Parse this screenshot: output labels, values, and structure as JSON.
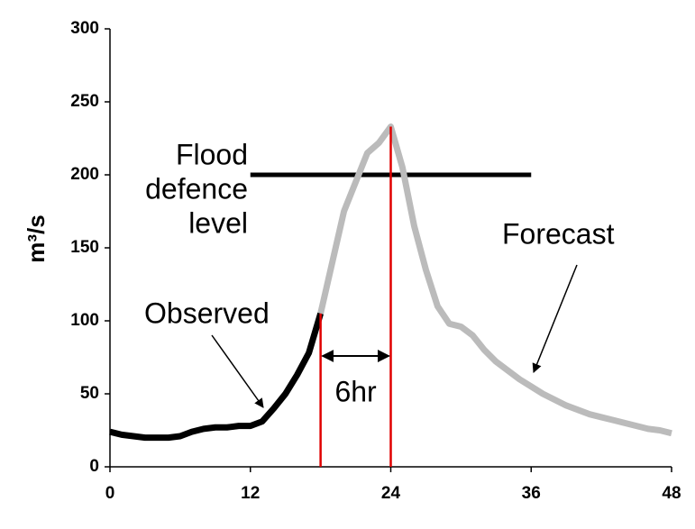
{
  "chart_data": {
    "type": "line",
    "y_label": "m³/s",
    "xlim": [
      0,
      48
    ],
    "xticks": [
      0,
      12,
      24,
      36,
      48
    ],
    "ylim": [
      0,
      300
    ],
    "yticks": [
      0,
      50,
      100,
      150,
      200,
      250,
      300
    ],
    "series": [
      {
        "name": "Observed",
        "color": "#000000",
        "x": [
          0,
          1,
          2,
          3,
          4,
          5,
          6,
          7,
          8,
          9,
          10,
          11,
          12,
          13,
          14,
          15,
          16,
          17,
          18
        ],
        "values": [
          24,
          22,
          21,
          20,
          20,
          20,
          21,
          24,
          26,
          27,
          27,
          28,
          28,
          31,
          40,
          50,
          63,
          78,
          105
        ]
      },
      {
        "name": "Forecast",
        "color": "#bbbbbb",
        "x": [
          18,
          19,
          20,
          21,
          22,
          23,
          24,
          25,
          26,
          27,
          28,
          29,
          30,
          31,
          32,
          33,
          34,
          35,
          36,
          37,
          38,
          39,
          40,
          41,
          42,
          43,
          44,
          45,
          46,
          47,
          48
        ],
        "values": [
          105,
          140,
          175,
          195,
          215,
          222,
          233,
          205,
          165,
          135,
          110,
          98,
          96,
          90,
          80,
          72,
          66,
          60,
          55,
          50,
          46,
          42,
          39,
          36,
          34,
          32,
          30,
          28,
          26,
          25,
          23
        ]
      }
    ],
    "flood_level": {
      "label": [
        "Flood",
        "defence",
        "level"
      ],
      "y": 200,
      "x": [
        12,
        36
      ],
      "color": "#000000"
    },
    "markers": {
      "x": [
        18,
        24
      ],
      "color": "#e00000",
      "label": "6hr"
    }
  }
}
